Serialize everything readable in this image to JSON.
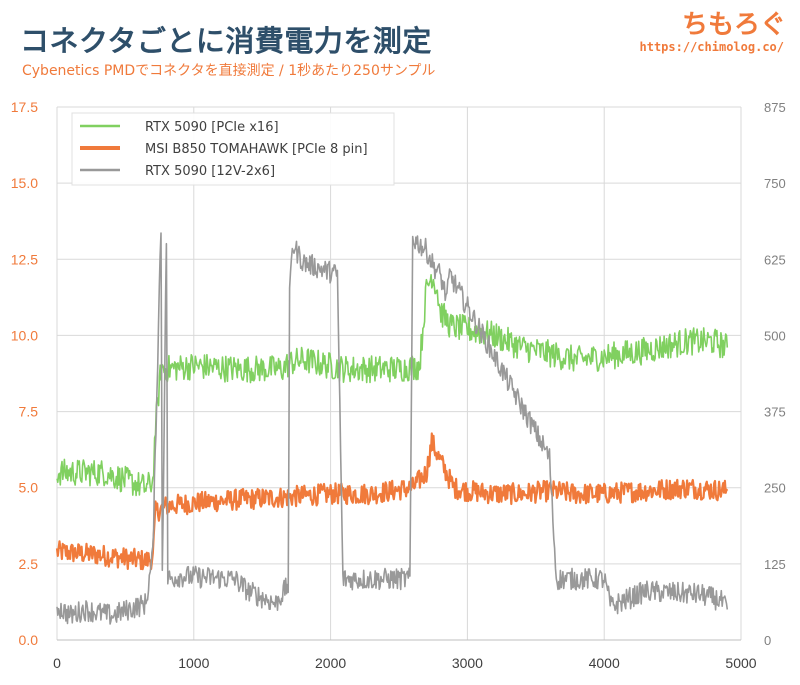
{
  "header": {
    "title": "コネクタごとに消費電力を測定",
    "subtitle": "Cybenetics PMDでコネクタを直接測定 / 1秒あたり250サンプル",
    "brand": "ちもろぐ",
    "brand_url": "https://chimolog.co/"
  },
  "chart_data": {
    "type": "line",
    "title": "コネクタごとに消費電力を測定",
    "subtitle": "Cybenetics PMDでコネクタを直接測定 / 1秒あたり250サンプル",
    "xlabel": "",
    "ylabel": "",
    "x_ticks": [
      0,
      1000,
      2000,
      3000,
      4000,
      5000
    ],
    "xlim": [
      0,
      5000
    ],
    "ylim_left": [
      0,
      17.5
    ],
    "y_ticks_left": [
      "0.0",
      "2.5",
      "5.0",
      "7.5",
      "10.0",
      "12.5",
      "15.0",
      "17.5"
    ],
    "ylim_right": [
      0,
      875
    ],
    "y_ticks_right": [
      "0",
      "125",
      "250",
      "375",
      "500",
      "625",
      "750",
      "875"
    ],
    "grid": "vertical and horizontal",
    "legend_position": "top-left",
    "series": [
      {
        "name": "RTX 5090 [PCIe x16]",
        "axis": "left",
        "color": "#80d060",
        "x": [
          0,
          350,
          650,
          700,
          720,
          760,
          800,
          1000,
          1300,
          1650,
          1700,
          1800,
          2000,
          2100,
          2300,
          2500,
          2650,
          2700,
          2740,
          2780,
          2800,
          2880,
          3000,
          3200,
          3400,
          3600,
          3800,
          4000,
          4300,
          4600,
          4800,
          4900
        ],
        "values": [
          5.5,
          5.5,
          5.0,
          5.2,
          7.0,
          8.9,
          8.9,
          9.0,
          8.9,
          8.9,
          9.1,
          9.2,
          9.0,
          8.9,
          8.9,
          8.9,
          9.0,
          11.5,
          12.0,
          11.5,
          10.8,
          10.3,
          10.2,
          10.0,
          9.6,
          9.4,
          9.2,
          9.3,
          9.5,
          9.8,
          9.8,
          9.6
        ]
      },
      {
        "name": "MSI B850 TOMAHAWK [PCIe 8 pin]",
        "axis": "left",
        "color": "#f07a3b",
        "x": [
          0,
          300,
          650,
          700,
          720,
          800,
          1000,
          1300,
          1700,
          2000,
          2300,
          2600,
          2700,
          2740,
          2800,
          2900,
          3000,
          3200,
          3400,
          3600,
          3800,
          4000,
          4300,
          4600,
          4900
        ],
        "values": [
          2.9,
          2.8,
          2.6,
          2.7,
          4.2,
          4.4,
          4.5,
          4.6,
          4.7,
          4.8,
          4.8,
          5.0,
          5.5,
          6.5,
          5.9,
          5.0,
          4.9,
          4.8,
          4.8,
          4.9,
          4.8,
          4.8,
          4.9,
          5.0,
          4.9
        ]
      },
      {
        "name": "RTX 5090 [12V-2x6]",
        "axis": "right",
        "color": "#999999",
        "x": [
          0,
          100,
          200,
          400,
          650,
          700,
          760,
          770,
          800,
          810,
          900,
          1300,
          1400,
          1600,
          1690,
          1700,
          1720,
          1800,
          2050,
          2090,
          2100,
          2200,
          2500,
          2580,
          2600,
          2700,
          2750,
          2800,
          2850,
          2870,
          3600,
          3650,
          4000,
          4050,
          4300,
          4700,
          4850,
          4900
        ],
        "values": [
          55,
          40,
          50,
          40,
          60,
          140,
          680,
          120,
          660,
          100,
          105,
          100,
          80,
          60,
          90,
          560,
          650,
          620,
          600,
          100,
          100,
          100,
          100,
          100,
          660,
          640,
          615,
          600,
          560,
          600,
          300,
          100,
          100,
          55,
          80,
          75,
          65,
          50
        ]
      }
    ]
  }
}
